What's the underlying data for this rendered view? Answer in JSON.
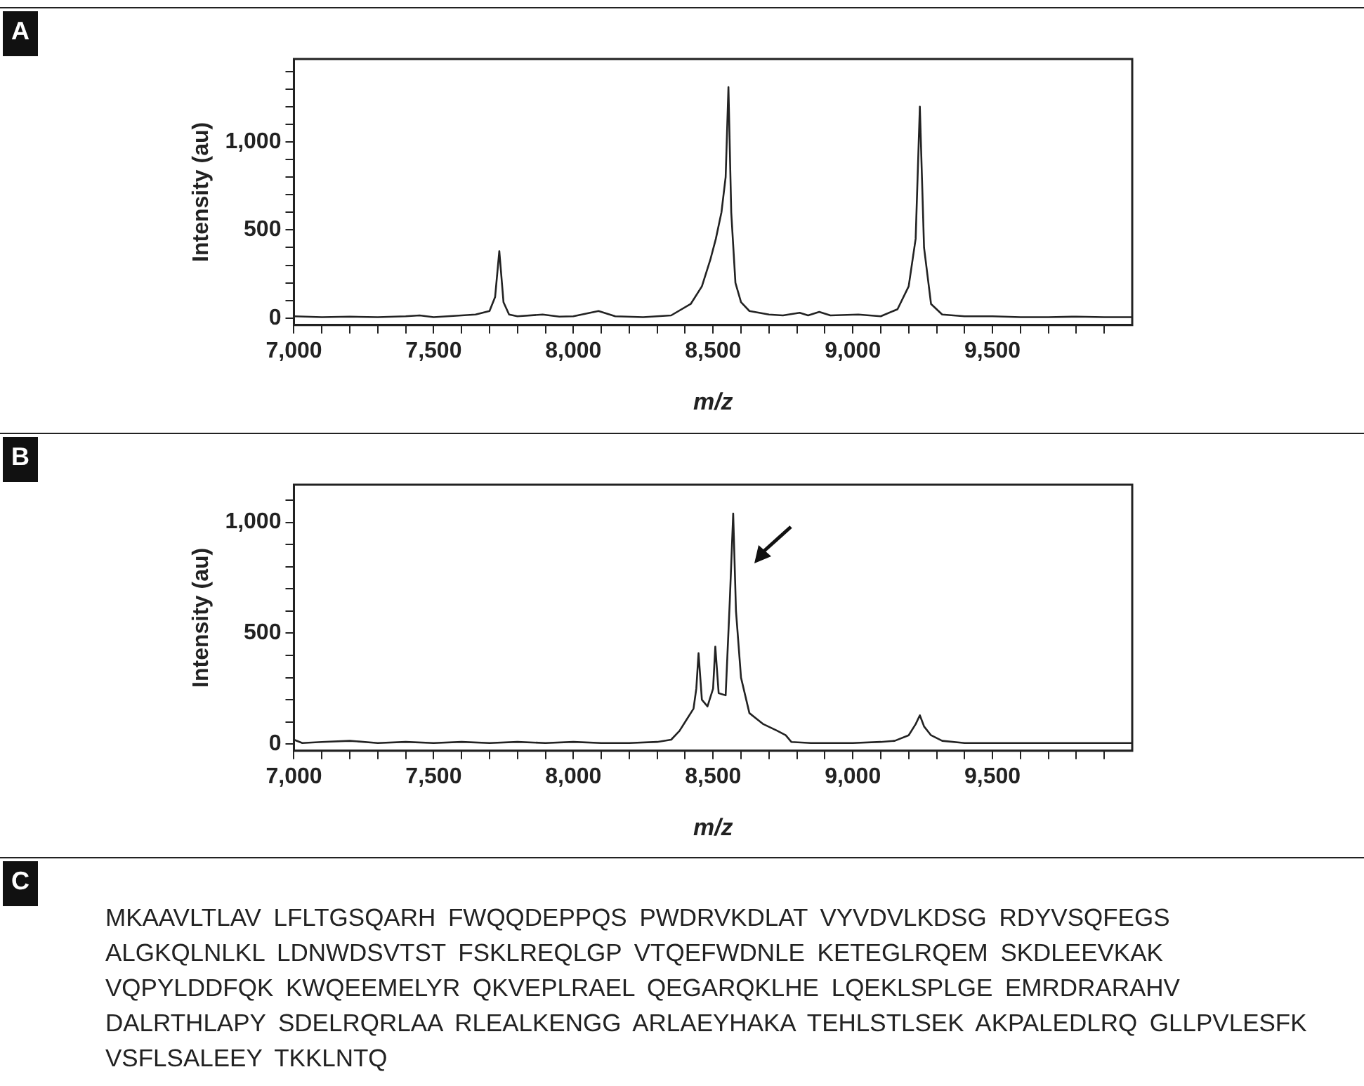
{
  "chart_data": [
    {
      "type": "line",
      "annotations": [
        "A"
      ],
      "xlabel": "m/z",
      "ylabel": "Intensity (au)",
      "xlim": [
        7000,
        10000
      ],
      "ylim": [
        -40,
        1470
      ],
      "xticks": [
        {
          "value": 7000,
          "label": "7,000"
        },
        {
          "value": 7100,
          "label": null
        },
        {
          "value": 7200,
          "label": null
        },
        {
          "value": 7300,
          "label": null
        },
        {
          "value": 7400,
          "label": null
        },
        {
          "value": 7500,
          "label": "7,500"
        },
        {
          "value": 7600,
          "label": null
        },
        {
          "value": 7700,
          "label": null
        },
        {
          "value": 7800,
          "label": null
        },
        {
          "value": 7900,
          "label": null
        },
        {
          "value": 8000,
          "label": "8,000"
        },
        {
          "value": 8100,
          "label": null
        },
        {
          "value": 8200,
          "label": null
        },
        {
          "value": 8300,
          "label": null
        },
        {
          "value": 8400,
          "label": null
        },
        {
          "value": 8500,
          "label": "8,500"
        },
        {
          "value": 8600,
          "label": null
        },
        {
          "value": 8700,
          "label": null
        },
        {
          "value": 8800,
          "label": null
        },
        {
          "value": 8900,
          "label": null
        },
        {
          "value": 9000,
          "label": "9,000"
        },
        {
          "value": 9100,
          "label": null
        },
        {
          "value": 9200,
          "label": null
        },
        {
          "value": 9300,
          "label": null
        },
        {
          "value": 9400,
          "label": null
        },
        {
          "value": 9500,
          "label": "9,500"
        },
        {
          "value": 9600,
          "label": null
        },
        {
          "value": 9700,
          "label": null
        },
        {
          "value": 9800,
          "label": null
        },
        {
          "value": 9900,
          "label": null
        }
      ],
      "yticks": [
        {
          "value": 0,
          "label": "0"
        },
        {
          "value": 100,
          "label": null
        },
        {
          "value": 200,
          "label": null
        },
        {
          "value": 300,
          "label": null
        },
        {
          "value": 400,
          "label": null
        },
        {
          "value": 500,
          "label": "500"
        },
        {
          "value": 600,
          "label": null
        },
        {
          "value": 700,
          "label": null
        },
        {
          "value": 800,
          "label": null
        },
        {
          "value": 900,
          "label": null
        },
        {
          "value": 1000,
          "label": "1,000"
        },
        {
          "value": 1100,
          "label": null
        },
        {
          "value": 1200,
          "label": null
        },
        {
          "value": 1300,
          "label": null
        },
        {
          "value": 1400,
          "label": null
        }
      ],
      "marker": "none",
      "series": [
        {
          "color": "#222222",
          "x": [
            7000,
            7100,
            7200,
            7300,
            7400,
            7450,
            7500,
            7600,
            7650,
            7700,
            7720,
            7735,
            7750,
            7770,
            7800,
            7890,
            7950,
            8000,
            8090,
            8150,
            8250,
            8350,
            8420,
            8460,
            8490,
            8510,
            8530,
            8545,
            8555,
            8565,
            8580,
            8600,
            8630,
            8700,
            8750,
            8810,
            8840,
            8880,
            8920,
            9020,
            9100,
            9160,
            9200,
            9225,
            9240,
            9255,
            9280,
            9320,
            9400,
            9500,
            9600,
            9700,
            9800,
            9900,
            10000
          ],
          "values": [
            10,
            5,
            8,
            5,
            10,
            15,
            5,
            15,
            20,
            40,
            120,
            380,
            90,
            20,
            10,
            20,
            8,
            10,
            40,
            10,
            5,
            15,
            80,
            180,
            330,
            450,
            600,
            800,
            1310,
            600,
            200,
            90,
            40,
            20,
            15,
            30,
            15,
            35,
            15,
            20,
            10,
            50,
            180,
            450,
            1200,
            400,
            80,
            20,
            10,
            10,
            5,
            5,
            8,
            5,
            5
          ]
        }
      ]
    },
    {
      "type": "line",
      "annotations": [
        "B"
      ],
      "xlabel": "m/z",
      "ylabel": "Intensity (au)",
      "xlim": [
        7000,
        10000
      ],
      "ylim": [
        -30,
        1170
      ],
      "xticks": [
        {
          "value": 7000,
          "label": "7,000"
        },
        {
          "value": 7100,
          "label": null
        },
        {
          "value": 7200,
          "label": null
        },
        {
          "value": 7300,
          "label": null
        },
        {
          "value": 7400,
          "label": null
        },
        {
          "value": 7500,
          "label": "7,500"
        },
        {
          "value": 7600,
          "label": null
        },
        {
          "value": 7700,
          "label": null
        },
        {
          "value": 7800,
          "label": null
        },
        {
          "value": 7900,
          "label": null
        },
        {
          "value": 8000,
          "label": "8,000"
        },
        {
          "value": 8100,
          "label": null
        },
        {
          "value": 8200,
          "label": null
        },
        {
          "value": 8300,
          "label": null
        },
        {
          "value": 8400,
          "label": null
        },
        {
          "value": 8500,
          "label": "8,500"
        },
        {
          "value": 8600,
          "label": null
        },
        {
          "value": 8700,
          "label": null
        },
        {
          "value": 8800,
          "label": null
        },
        {
          "value": 8900,
          "label": null
        },
        {
          "value": 9000,
          "label": "9,000"
        },
        {
          "value": 9100,
          "label": null
        },
        {
          "value": 9200,
          "label": null
        },
        {
          "value": 9300,
          "label": null
        },
        {
          "value": 9400,
          "label": null
        },
        {
          "value": 9500,
          "label": "9,500"
        },
        {
          "value": 9600,
          "label": null
        },
        {
          "value": 9700,
          "label": null
        },
        {
          "value": 9800,
          "label": null
        },
        {
          "value": 9900,
          "label": null
        }
      ],
      "yticks": [
        {
          "value": 0,
          "label": "0"
        },
        {
          "value": 100,
          "label": null
        },
        {
          "value": 200,
          "label": null
        },
        {
          "value": 300,
          "label": null
        },
        {
          "value": 400,
          "label": null
        },
        {
          "value": 500,
          "label": "500"
        },
        {
          "value": 600,
          "label": null
        },
        {
          "value": 700,
          "label": null
        },
        {
          "value": 800,
          "label": null
        },
        {
          "value": 900,
          "label": null
        },
        {
          "value": 1000,
          "label": "1,000"
        },
        {
          "value": 1100,
          "label": null
        }
      ],
      "marker": "none",
      "series": [
        {
          "color": "#222222",
          "x": [
            7000,
            7030,
            7100,
            7200,
            7300,
            7400,
            7500,
            7600,
            7700,
            7800,
            7900,
            8000,
            8100,
            8200,
            8300,
            8350,
            8380,
            8400,
            8430,
            8440,
            8448,
            8460,
            8480,
            8500,
            8508,
            8520,
            8545,
            8560,
            8572,
            8582,
            8600,
            8630,
            8680,
            8730,
            8760,
            8780,
            8850,
            9000,
            9100,
            9150,
            9200,
            9225,
            9240,
            9255,
            9280,
            9320,
            9400,
            9500,
            9600,
            9700,
            9800,
            9900,
            10000
          ],
          "values": [
            20,
            5,
            10,
            15,
            5,
            10,
            5,
            10,
            5,
            10,
            5,
            10,
            5,
            5,
            10,
            20,
            60,
            100,
            160,
            250,
            410,
            200,
            170,
            250,
            440,
            230,
            220,
            650,
            1040,
            600,
            300,
            140,
            90,
            60,
            40,
            10,
            5,
            5,
            10,
            15,
            40,
            90,
            130,
            80,
            40,
            15,
            5,
            5,
            5,
            5,
            5,
            5,
            5
          ]
        }
      ]
    },
    {
      "type": "other",
      "title": "C",
      "annotations": [
        "MKAAVLTLAV LFLTGSQARH FWQQDEPPQS PWDRVKDLAT VYVDVLKDSG RDYVSQFEGS ALGKQLNLKL LDNWDSVTST FSKLREQLGP VTQEFWDNLE KETEGLRQEM SKDLEEVKAK VQPYLDDFQK KWQEEMELYR QKVEPLRAEL QEGARQKLHE LQEKLSPLGE EMRDRARAHV DALRTHLAPY SDELRQRLAA RLEALKENGG ARLAEYHAKA TEHLSTLSEK AKPALEDLRQ GLLPVLESFK VSFLSALEEY TKKLNTQ"
      ]
    }
  ]
}
